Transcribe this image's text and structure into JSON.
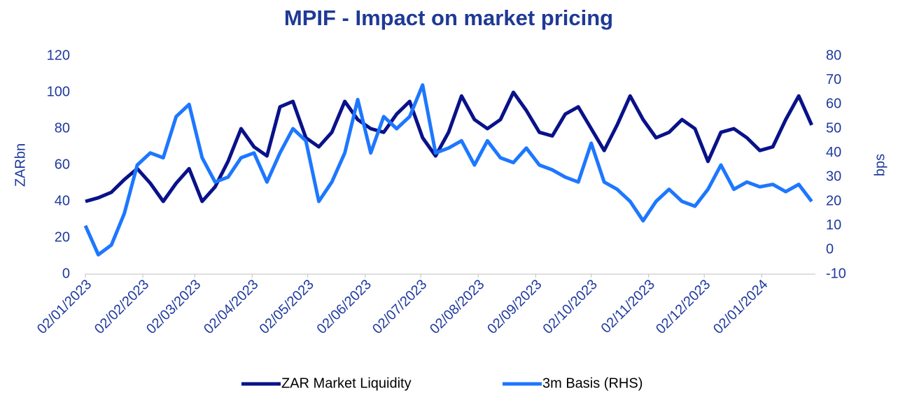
{
  "chart_data": {
    "type": "line",
    "title": "MPIF - Impact on market pricing",
    "y_label": "ZARbn",
    "y2_label": "bps",
    "x": [
      "02/01/2023",
      "09/01/2023",
      "16/01/2023",
      "23/01/2023",
      "30/01/2023",
      "06/02/2023",
      "13/02/2023",
      "20/02/2023",
      "27/02/2023",
      "06/03/2023",
      "13/03/2023",
      "20/03/2023",
      "27/03/2023",
      "03/04/2023",
      "10/04/2023",
      "17/04/2023",
      "24/04/2023",
      "01/05/2023",
      "08/05/2023",
      "15/05/2023",
      "22/05/2023",
      "29/05/2023",
      "05/06/2023",
      "12/06/2023",
      "19/06/2023",
      "26/06/2023",
      "03/07/2023",
      "10/07/2023",
      "17/07/2023",
      "24/07/2023",
      "31/07/2023",
      "07/08/2023",
      "14/08/2023",
      "21/08/2023",
      "28/08/2023",
      "04/09/2023",
      "11/09/2023",
      "18/09/2023",
      "25/09/2023",
      "02/10/2023",
      "09/10/2023",
      "16/10/2023",
      "23/10/2023",
      "30/10/2023",
      "06/11/2023",
      "13/11/2023",
      "20/11/2023",
      "27/11/2023",
      "04/12/2023",
      "11/12/2023",
      "18/12/2023",
      "25/12/2023",
      "01/01/2024",
      "08/01/2024",
      "15/01/2024",
      "22/01/2024",
      "29/01/2024"
    ],
    "series": [
      {
        "name": "ZAR Market Liquidity",
        "color": "#0a128a",
        "axis": "y",
        "values": [
          40,
          42,
          45,
          52,
          58,
          50,
          40,
          50,
          58,
          40,
          48,
          62,
          80,
          70,
          65,
          92,
          95,
          75,
          70,
          78,
          95,
          85,
          80,
          78,
          88,
          95,
          75,
          65,
          78,
          98,
          85,
          80,
          85,
          100,
          90,
          78,
          76,
          88,
          92,
          80,
          68,
          82,
          98,
          85,
          75,
          78,
          85,
          80,
          62,
          78,
          80,
          75,
          68,
          70,
          85,
          98,
          82
        ]
      },
      {
        "name": "3m Basis (RHS)",
        "color": "#1e78ff",
        "axis": "y2",
        "values": [
          10,
          -2,
          2,
          15,
          35,
          40,
          38,
          55,
          60,
          38,
          28,
          30,
          38,
          40,
          28,
          40,
          50,
          45,
          20,
          28,
          40,
          62,
          40,
          55,
          50,
          55,
          68,
          40,
          42,
          45,
          35,
          45,
          38,
          36,
          42,
          35,
          33,
          30,
          28,
          44,
          28,
          25,
          20,
          12,
          20,
          25,
          20,
          18,
          25,
          35,
          25,
          28,
          26,
          27,
          24,
          27,
          20
        ]
      }
    ],
    "xlim": [
      "02/01/2023",
      "31/01/2024"
    ],
    "xticks": [
      "02/01/2023",
      "02/02/2023",
      "02/03/2023",
      "02/04/2023",
      "02/05/2023",
      "02/06/2023",
      "02/07/2023",
      "02/08/2023",
      "02/09/2023",
      "02/10/2023",
      "02/11/2023",
      "02/12/2023",
      "02/01/2024"
    ],
    "ylim": [
      0,
      120
    ],
    "yticks": [
      0,
      20,
      40,
      60,
      80,
      100,
      120
    ],
    "y2lim": [
      -10,
      80
    ],
    "y2ticks": [
      -10,
      0,
      10,
      20,
      30,
      40,
      50,
      60,
      70,
      80
    ],
    "legend": "bottom"
  }
}
